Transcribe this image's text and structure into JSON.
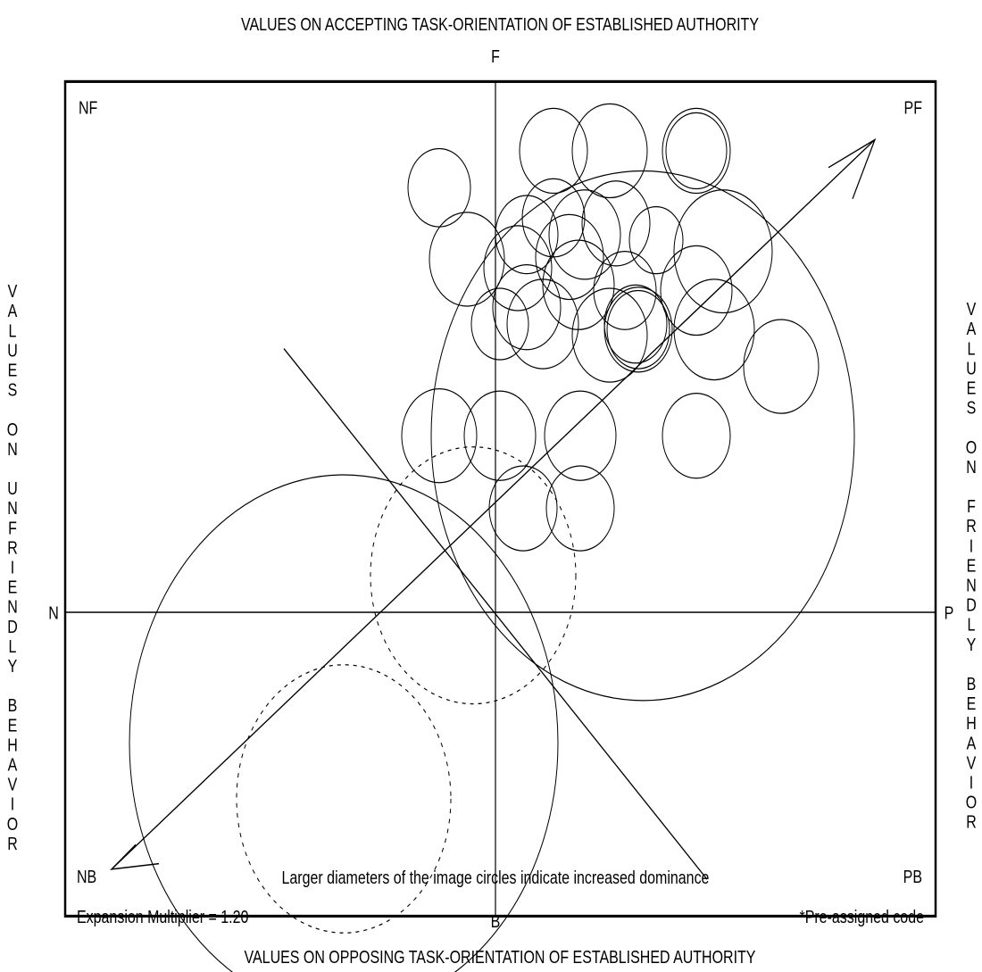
{
  "title_top": "VALUES ON ACCEPTING TASK-ORIENTATION OF ESTABLISHED AUTHORITY",
  "title_bottom": "VALUES ON OPPOSING TASK-ORIENTATION OF ESTABLISHED AUTHORITY",
  "title_left": "VALUES ON UNFRIENDLY BEHAVIOR",
  "title_right": "VALUES ON FRIENDLY BEHAVIOR",
  "axis_labels": {
    "top": "F",
    "bottom": "B",
    "left": "N",
    "right": "P"
  },
  "corners": {
    "nf": "NF",
    "pf": "PF",
    "nb": "NB",
    "pb": "PB"
  },
  "caption": "Larger diameters of the image circles indicate increased dominance",
  "footer_left": "Expansion Multiplier = 1.20",
  "footer_right": "*Pre-assigned code"
}
